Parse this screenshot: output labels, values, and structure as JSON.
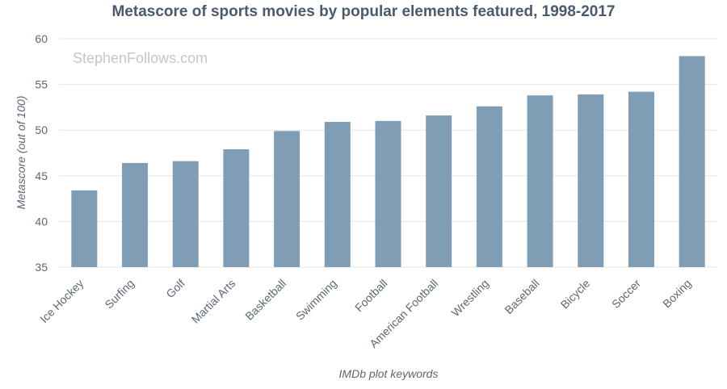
{
  "chart_data": {
    "type": "bar",
    "title": "Metascore of sports movies by popular elements featured, 1998-2017",
    "watermark": "StephenFollows.com",
    "xlabel": "IMDb plot keywords",
    "ylabel": "Metascore (out of 100)",
    "ylim": [
      35,
      60
    ],
    "yticks": [
      35,
      40,
      45,
      50,
      55,
      60
    ],
    "grid": true,
    "bar_color": "#7f9db5",
    "categories": [
      "Ice Hockey",
      "Surfing",
      "Golf",
      "Martial Arts",
      "Basketball",
      "Swimming",
      "Football",
      "American Football",
      "Wrestling",
      "Baseball",
      "Bicycle",
      "Soccer",
      "Boxing"
    ],
    "values": [
      43.4,
      46.4,
      46.6,
      47.9,
      49.9,
      50.9,
      51.0,
      51.6,
      52.6,
      53.8,
      53.9,
      54.2,
      58.1
    ]
  }
}
